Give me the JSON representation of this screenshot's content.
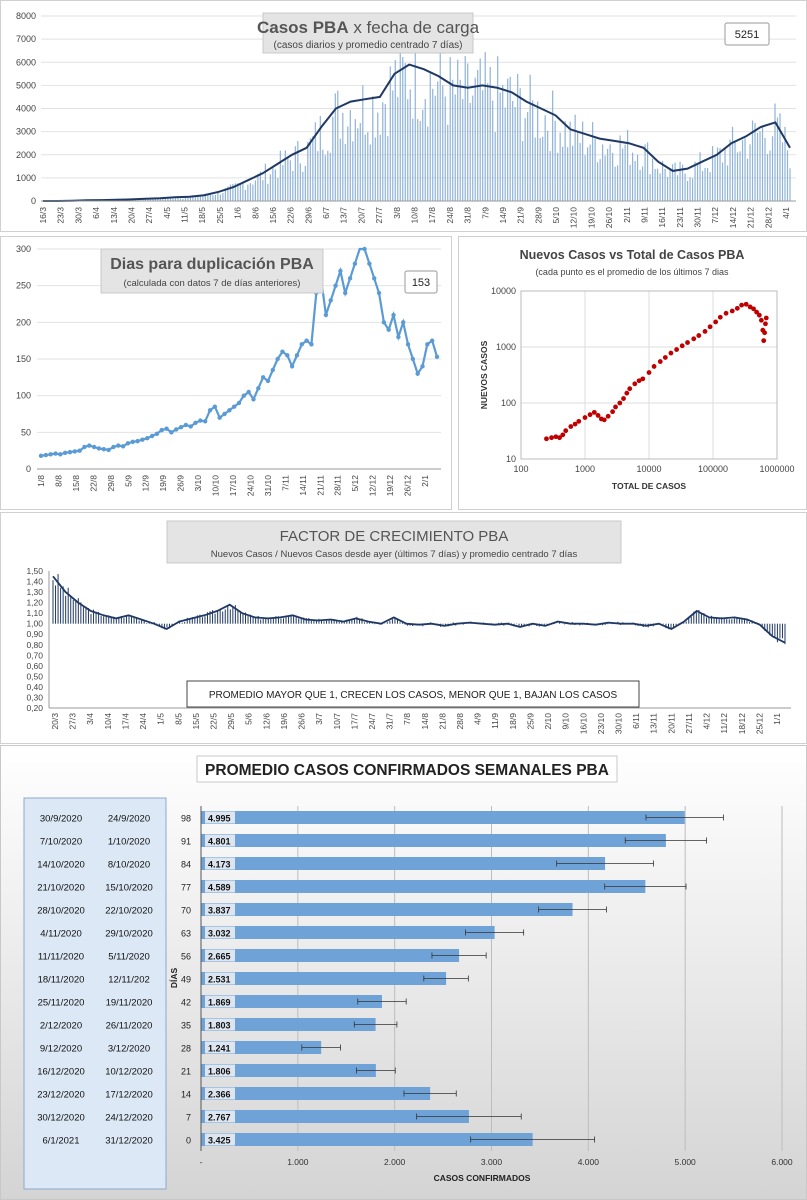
{
  "charts": {
    "cases": {
      "title_bold": "Casos PBA",
      "title_rest": "x fecha de carga",
      "subtitle": "(casos diarios y promedio centrado 7 días)",
      "value_box": "5251",
      "series_color": "#1f3864",
      "bar_color": "#8fb3d9"
    },
    "doubling": {
      "title": "Dias para duplicación PBA",
      "subtitle": "(calculada con datos 7 de días anteriores)",
      "value_box": "153",
      "line_color": "#5b9bd5"
    },
    "newvstotal": {
      "title": "Nuevos Casos vs Total de Casos PBA",
      "subtitle": "(cada punto es el promedio de los últimos 7 dias",
      "ylabel": "NUEVOS CASOS",
      "xlabel": "TOTAL DE CASOS",
      "dot_color": "#c00000"
    },
    "growth": {
      "title": "FACTOR DE CRECIMIENTO PBA",
      "subtitle": "Nuevos Casos  / Nuevos Casos desde ayer (últimos 7 días) y promedio  centrado 7 días",
      "note": "PROMEDIO MAYOR QUE 1, CRECEN LOS CASOS, MENOR QUE 1, BAJAN LOS CASOS",
      "line_color": "#1f3864"
    },
    "weekly": {
      "title": "PROMEDIO CASOS CONFIRMADOS SEMANALES PBA",
      "axis_label": "DÍAS",
      "xlabel": "CASOS CONFIRMADOS",
      "bar_color": "#6fa3d8"
    }
  },
  "chart_data": [
    {
      "type": "bar",
      "title": "Casos PBA x fecha de carga",
      "subtitle": "(casos diarios y promedio centrado 7 días)",
      "ylim": [
        0,
        8000
      ],
      "yticks": [
        0,
        1000,
        2000,
        3000,
        4000,
        5000,
        6000,
        7000,
        8000
      ],
      "xticks": [
        "16/3",
        "23/3",
        "30/3",
        "6/4",
        "13/4",
        "20/4",
        "27/4",
        "4/5",
        "11/5",
        "18/5",
        "25/5",
        "1/6",
        "8/6",
        "15/6",
        "22/6",
        "29/6",
        "6/7",
        "13/7",
        "20/7",
        "27/7",
        "3/8",
        "10/8",
        "17/8",
        "24/8",
        "31/8",
        "7/9",
        "14/9",
        "21/9",
        "28/9",
        "5/10",
        "12/10",
        "19/10",
        "26/10",
        "2/11",
        "9/11",
        "16/11",
        "23/11",
        "30/11",
        "7/12",
        "14/12",
        "21/12",
        "28/12",
        "4/1"
      ],
      "avg_series_points": [
        0,
        0,
        10,
        30,
        40,
        50,
        70,
        100,
        120,
        160,
        180,
        250,
        400,
        600,
        900,
        1200,
        1600,
        2000,
        2300,
        3200,
        4000,
        4300,
        4400,
        4500,
        5500,
        5900,
        5700,
        5400,
        5000,
        4900,
        5000,
        4900,
        4700,
        4300,
        4000,
        3700,
        3100,
        2900,
        2700,
        2600,
        2500,
        2300,
        1700,
        1300,
        1400,
        1700,
        2000,
        2500,
        2800,
        3200,
        3400,
        2300
      ]
    },
    {
      "type": "line",
      "title": "Dias para duplicación PBA",
      "subtitle": "(calculada con datos 7 de días anteriores)",
      "ylim": [
        0,
        300
      ],
      "yticks": [
        0,
        50,
        100,
        150,
        200,
        250,
        300
      ],
      "xticks": [
        "1/8",
        "8/8",
        "15/8",
        "22/8",
        "29/8",
        "5/9",
        "12/9",
        "19/9",
        "26/9",
        "3/10",
        "10/10",
        "17/10",
        "24/10",
        "31/10",
        "7/11",
        "14/11",
        "21/11",
        "28/11",
        "5/12",
        "12/12",
        "19/12",
        "26/12",
        "2/1"
      ],
      "values": [
        18,
        19,
        20,
        21,
        20,
        22,
        23,
        24,
        25,
        30,
        32,
        30,
        28,
        27,
        26,
        30,
        32,
        31,
        35,
        37,
        38,
        40,
        42,
        45,
        48,
        53,
        55,
        50,
        54,
        57,
        60,
        58,
        63,
        66,
        65,
        80,
        85,
        70,
        75,
        80,
        85,
        90,
        100,
        105,
        95,
        110,
        125,
        120,
        135,
        150,
        160,
        155,
        140,
        155,
        170,
        175,
        170,
        240,
        260,
        210,
        230,
        250,
        270,
        240,
        260,
        280,
        310,
        300,
        280,
        260,
        240,
        200,
        190,
        210,
        180,
        200,
        170,
        150,
        130,
        140,
        170,
        175,
        153
      ],
      "value_box": 153
    },
    {
      "type": "scatter",
      "title": "Nuevos Casos vs Total de Casos PBA",
      "subtitle": "(cada punto es el promedio de los últimos 7 dias",
      "xlabel": "TOTAL DE CASOS",
      "ylabel": "NUEVOS CASOS",
      "xscale": "log",
      "yscale": "log",
      "xlim": [
        100,
        1000000
      ],
      "ylim": [
        10,
        10000
      ],
      "xticks": [
        "100",
        "1000",
        "10000",
        "100000",
        "1000000"
      ],
      "yticks": [
        "10",
        "100",
        "1000",
        "10000"
      ],
      "points": [
        [
          250,
          23
        ],
        [
          300,
          24
        ],
        [
          350,
          25
        ],
        [
          400,
          24
        ],
        [
          450,
          27
        ],
        [
          500,
          32
        ],
        [
          600,
          38
        ],
        [
          700,
          42
        ],
        [
          800,
          47
        ],
        [
          1000,
          55
        ],
        [
          1200,
          62
        ],
        [
          1400,
          68
        ],
        [
          1600,
          60
        ],
        [
          1800,
          52
        ],
        [
          2000,
          50
        ],
        [
          2300,
          58
        ],
        [
          2700,
          70
        ],
        [
          3000,
          85
        ],
        [
          3500,
          100
        ],
        [
          4000,
          120
        ],
        [
          4500,
          150
        ],
        [
          5000,
          180
        ],
        [
          6000,
          220
        ],
        [
          7000,
          250
        ],
        [
          8000,
          270
        ],
        [
          10000,
          350
        ],
        [
          12000,
          450
        ],
        [
          15000,
          550
        ],
        [
          18000,
          650
        ],
        [
          22000,
          780
        ],
        [
          27000,
          900
        ],
        [
          33000,
          1050
        ],
        [
          40000,
          1200
        ],
        [
          50000,
          1400
        ],
        [
          60000,
          1600
        ],
        [
          75000,
          1900
        ],
        [
          90000,
          2300
        ],
        [
          110000,
          2800
        ],
        [
          130000,
          3400
        ],
        [
          160000,
          4000
        ],
        [
          200000,
          4400
        ],
        [
          240000,
          4900
        ],
        [
          280000,
          5600
        ],
        [
          330000,
          5800
        ],
        [
          380000,
          5200
        ],
        [
          430000,
          4800
        ],
        [
          480000,
          4200
        ],
        [
          530000,
          3700
        ],
        [
          570000,
          3000
        ],
        [
          600000,
          2000
        ],
        [
          620000,
          1300
        ],
        [
          640000,
          1800
        ],
        [
          660000,
          2600
        ],
        [
          680000,
          3300
        ]
      ]
    },
    {
      "type": "line",
      "title": "FACTOR DE CRECIMIENTO PBA",
      "subtitle": "Nuevos Casos  / Nuevos Casos desde ayer (últimos 7 días) y promedio  centrado 7 días",
      "ylim": [
        0.2,
        1.5
      ],
      "yticks": [
        "0,20",
        "0,30",
        "0,40",
        "0,50",
        "0,60",
        "0,70",
        "0,80",
        "0,90",
        "1,00",
        "1,10",
        "1,20",
        "1,30",
        "1,40",
        "1,50"
      ],
      "xticks": [
        "20/3",
        "27/3",
        "3/4",
        "10/4",
        "17/4",
        "24/4",
        "1/5",
        "8/5",
        "15/5",
        "22/5",
        "29/5",
        "5/6",
        "12/6",
        "19/6",
        "26/6",
        "3/7",
        "10/7",
        "17/7",
        "24/7",
        "31/7",
        "7/8",
        "14/8",
        "21/8",
        "28/8",
        "4/9",
        "11/9",
        "18/9",
        "25/9",
        "2/10",
        "9/10",
        "16/10",
        "23/10",
        "30/10",
        "6/11",
        "13/11",
        "20/11",
        "27/11",
        "4/12",
        "11/12",
        "18/12",
        "25/12",
        "1/1"
      ],
      "avg_values": [
        1.45,
        1.3,
        1.2,
        1.12,
        1.08,
        1.05,
        1.08,
        1.04,
        1.0,
        0.95,
        1.02,
        1.05,
        1.08,
        1.12,
        1.18,
        1.1,
        1.06,
        1.05,
        1.06,
        1.08,
        1.04,
        1.03,
        1.04,
        1.02,
        1.05,
        1.02,
        1.0,
        1.06,
        1.0,
        0.99,
        1.0,
        0.98,
        1.0,
        1.01,
        1.0,
        0.99,
        1.0,
        0.97,
        1.0,
        0.98,
        1.02,
        1.0,
        1.0,
        0.99,
        1.01,
        1.0,
        1.0,
        0.98,
        1.0,
        0.95,
        1.02,
        1.12,
        1.06,
        1.05,
        1.06,
        1.04,
        0.99,
        0.88,
        0.82
      ],
      "note": "PROMEDIO MAYOR QUE 1, CRECEN LOS CASOS, MENOR QUE 1, BAJAN LOS CASOS"
    },
    {
      "type": "bar",
      "orientation": "horizontal",
      "title": "PROMEDIO CASOS CONFIRMADOS SEMANALES PBA",
      "xlabel": "CASOS CONFIRMADOS",
      "axis_label": "DÍAS",
      "xlim": [
        0,
        6000
      ],
      "xticks": [
        "-",
        "1.000",
        "2.000",
        "3.000",
        "4.000",
        "5.000",
        "6.000"
      ],
      "rows": [
        {
          "end": "30/9/2020",
          "start": "24/9/2020",
          "dias": "98",
          "value": 4995,
          "label": "4.995",
          "err": 400
        },
        {
          "end": "7/10/2020",
          "start": "1/10/2020",
          "dias": "91",
          "value": 4801,
          "label": "4.801",
          "err": 420
        },
        {
          "end": "14/10/2020",
          "start": "8/10/2020",
          "dias": "84",
          "value": 4173,
          "label": "4.173",
          "err": 500
        },
        {
          "end": "21/10/2020",
          "start": "15/10/2020",
          "dias": "77",
          "value": 4589,
          "label": "4.589",
          "err": 420
        },
        {
          "end": "28/10/2020",
          "start": "22/10/2020",
          "dias": "70",
          "value": 3837,
          "label": "3.837",
          "err": 350
        },
        {
          "end": "4/11/2020",
          "start": "29/10/2020",
          "dias": "63",
          "value": 3032,
          "label": "3.032",
          "err": 300
        },
        {
          "end": "11/11/2020",
          "start": "5/11/2020",
          "dias": "56",
          "value": 2665,
          "label": "2.665",
          "err": 280
        },
        {
          "end": "18/11/2020",
          "start": "12/11/202",
          "dias": "49",
          "value": 2531,
          "label": "2.531",
          "err": 230
        },
        {
          "end": "25/11/2020",
          "start": "19/11/2020",
          "dias": "42",
          "value": 1869,
          "label": "1.869",
          "err": 250
        },
        {
          "end": "2/12/2020",
          "start": "26/11/2020",
          "dias": "35",
          "value": 1803,
          "label": "1.803",
          "err": 220
        },
        {
          "end": "9/12/2020",
          "start": "3/12/2020",
          "dias": "28",
          "value": 1241,
          "label": "1.241",
          "err": 200
        },
        {
          "end": "16/12/2020",
          "start": "10/12/2020",
          "dias": "21",
          "value": 1806,
          "label": "1.806",
          "err": 200
        },
        {
          "end": "23/12/2020",
          "start": "17/12/2020",
          "dias": "14",
          "value": 2366,
          "label": "2.366",
          "err": 270
        },
        {
          "end": "30/12/2020",
          "start": "24/12/2020",
          "dias": "7",
          "value": 2767,
          "label": "2.767",
          "err": 540
        },
        {
          "end": "6/1/2021",
          "start": "31/12/2020",
          "dias": "0",
          "value": 3425,
          "label": "3.425",
          "err": 640
        }
      ]
    }
  ]
}
